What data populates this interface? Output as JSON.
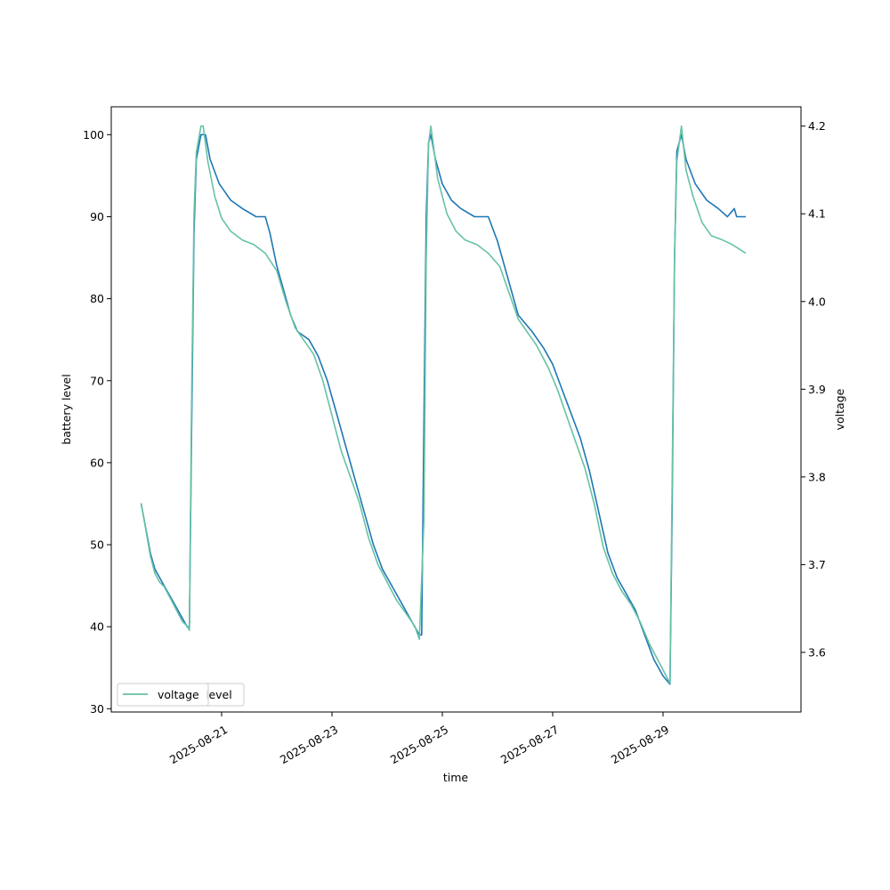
{
  "chart_data": {
    "type": "line",
    "xlabel": "time",
    "x_ticks": [
      "2025-08-21",
      "2025-08-23",
      "2025-08-25",
      "2025-08-27",
      "2025-08-29"
    ],
    "xlim": [
      "2025-08-19 00:00",
      "2025-08-31 12:00"
    ],
    "left_axis": {
      "label": "battery level",
      "lim": [
        29.6,
        103.4
      ],
      "ticks": [
        "30",
        "40",
        "50",
        "60",
        "70",
        "80",
        "90",
        "100"
      ]
    },
    "right_axis": {
      "label": "voltage",
      "lim": [
        3.532,
        4.222
      ],
      "ticks": [
        "3.6",
        "3.7",
        "3.8",
        "3.9",
        "4.0",
        "4.1",
        "4.2"
      ]
    },
    "legend": {
      "location": "lower-left",
      "entries": [
        "level",
        "voltage"
      ]
    },
    "grid": false,
    "series": [
      {
        "name": "level",
        "axis": "left",
        "color": "#1f77b4",
        "points": [
          [
            "2025-08-19 13:00",
            55
          ],
          [
            "2025-08-19 15:00",
            52
          ],
          [
            "2025-08-19 17:00",
            49
          ],
          [
            "2025-08-19 19:00",
            47
          ],
          [
            "2025-08-19 21:00",
            46
          ],
          [
            "2025-08-19 23:00",
            45
          ],
          [
            "2025-08-20 01:00",
            44
          ],
          [
            "2025-08-20 03:00",
            43
          ],
          [
            "2025-08-20 05:00",
            42
          ],
          [
            "2025-08-20 07:00",
            41
          ],
          [
            "2025-08-20 09:00",
            40
          ],
          [
            "2025-08-20 10:00",
            40
          ],
          [
            "2025-08-20 11:00",
            65
          ],
          [
            "2025-08-20 12:00",
            88
          ],
          [
            "2025-08-20 13:00",
            97
          ],
          [
            "2025-08-20 15:00",
            100
          ],
          [
            "2025-08-20 17:00",
            100
          ],
          [
            "2025-08-20 19:00",
            97
          ],
          [
            "2025-08-20 23:00",
            94
          ],
          [
            "2025-08-21 04:00",
            92
          ],
          [
            "2025-08-21 09:00",
            91
          ],
          [
            "2025-08-21 15:00",
            90
          ],
          [
            "2025-08-21 19:00",
            90
          ],
          [
            "2025-08-21 21:00",
            88
          ],
          [
            "2025-08-22 00:00",
            84
          ],
          [
            "2025-08-22 03:00",
            81
          ],
          [
            "2025-08-22 06:00",
            78
          ],
          [
            "2025-08-22 09:00",
            76
          ],
          [
            "2025-08-22 14:00",
            75
          ],
          [
            "2025-08-22 18:00",
            73
          ],
          [
            "2025-08-22 22:00",
            70
          ],
          [
            "2025-08-23 02:00",
            66
          ],
          [
            "2025-08-23 06:00",
            62
          ],
          [
            "2025-08-23 10:00",
            58
          ],
          [
            "2025-08-23 14:00",
            54
          ],
          [
            "2025-08-23 18:00",
            50
          ],
          [
            "2025-08-23 22:00",
            47
          ],
          [
            "2025-08-24 02:00",
            45
          ],
          [
            "2025-08-24 06:00",
            43
          ],
          [
            "2025-08-24 10:00",
            41
          ],
          [
            "2025-08-24 14:00",
            39
          ],
          [
            "2025-08-24 15:00",
            39
          ],
          [
            "2025-08-24 16:00",
            65
          ],
          [
            "2025-08-24 17:00",
            90
          ],
          [
            "2025-08-24 18:00",
            99
          ],
          [
            "2025-08-24 19:00",
            100
          ],
          [
            "2025-08-24 21:00",
            97
          ],
          [
            "2025-08-25 00:00",
            94
          ],
          [
            "2025-08-25 04:00",
            92
          ],
          [
            "2025-08-25 08:00",
            91
          ],
          [
            "2025-08-25 14:00",
            90
          ],
          [
            "2025-08-25 20:00",
            90
          ],
          [
            "2025-08-26 00:00",
            87
          ],
          [
            "2025-08-26 03:00",
            84
          ],
          [
            "2025-08-26 06:00",
            81
          ],
          [
            "2025-08-26 09:00",
            78
          ],
          [
            "2025-08-26 12:00",
            77
          ],
          [
            "2025-08-26 15:00",
            76
          ],
          [
            "2025-08-26 20:00",
            74
          ],
          [
            "2025-08-27 00:00",
            72
          ],
          [
            "2025-08-27 04:00",
            69
          ],
          [
            "2025-08-27 08:00",
            66
          ],
          [
            "2025-08-27 12:00",
            63
          ],
          [
            "2025-08-27 16:00",
            59
          ],
          [
            "2025-08-27 20:00",
            54
          ],
          [
            "2025-08-28 00:00",
            49
          ],
          [
            "2025-08-28 04:00",
            46
          ],
          [
            "2025-08-28 08:00",
            44
          ],
          [
            "2025-08-28 12:00",
            42
          ],
          [
            "2025-08-28 16:00",
            39
          ],
          [
            "2025-08-28 20:00",
            36
          ],
          [
            "2025-08-29 00:00",
            34
          ],
          [
            "2025-08-29 03:00",
            33
          ],
          [
            "2025-08-29 04:00",
            55
          ],
          [
            "2025-08-29 05:00",
            85
          ],
          [
            "2025-08-29 06:00",
            98
          ],
          [
            "2025-08-29 08:00",
            100
          ],
          [
            "2025-08-29 10:00",
            97
          ],
          [
            "2025-08-29 14:00",
            94
          ],
          [
            "2025-08-29 19:00",
            92
          ],
          [
            "2025-08-30 00:00",
            91
          ],
          [
            "2025-08-30 04:00",
            90
          ],
          [
            "2025-08-30 07:00",
            91
          ],
          [
            "2025-08-30 08:00",
            90
          ],
          [
            "2025-08-30 12:00",
            90
          ]
        ]
      },
      {
        "name": "voltage",
        "axis": "right",
        "color": "#66c2a5",
        "points": [
          [
            "2025-08-19 13:00",
            3.77
          ],
          [
            "2025-08-19 15:00",
            3.74
          ],
          [
            "2025-08-19 17:00",
            3.71
          ],
          [
            "2025-08-19 19:00",
            3.69
          ],
          [
            "2025-08-19 21:00",
            3.68
          ],
          [
            "2025-08-19 23:00",
            3.675
          ],
          [
            "2025-08-20 01:00",
            3.665
          ],
          [
            "2025-08-20 03:00",
            3.655
          ],
          [
            "2025-08-20 05:00",
            3.645
          ],
          [
            "2025-08-20 07:00",
            3.635
          ],
          [
            "2025-08-20 09:00",
            3.63
          ],
          [
            "2025-08-20 10:00",
            3.625
          ],
          [
            "2025-08-20 11:00",
            3.9
          ],
          [
            "2025-08-20 12:00",
            4.1
          ],
          [
            "2025-08-20 13:00",
            4.17
          ],
          [
            "2025-08-20 15:00",
            4.2
          ],
          [
            "2025-08-20 16:00",
            4.2
          ],
          [
            "2025-08-20 18:00",
            4.16
          ],
          [
            "2025-08-20 21:00",
            4.12
          ],
          [
            "2025-08-21 00:00",
            4.095
          ],
          [
            "2025-08-21 04:00",
            4.08
          ],
          [
            "2025-08-21 09:00",
            4.07
          ],
          [
            "2025-08-21 14:00",
            4.065
          ],
          [
            "2025-08-21 19:00",
            4.055
          ],
          [
            "2025-08-22 00:00",
            4.035
          ],
          [
            "2025-08-22 04:00",
            4.0
          ],
          [
            "2025-08-22 08:00",
            3.97
          ],
          [
            "2025-08-22 12:00",
            3.955
          ],
          [
            "2025-08-22 16:00",
            3.94
          ],
          [
            "2025-08-22 20:00",
            3.91
          ],
          [
            "2025-08-23 00:00",
            3.87
          ],
          [
            "2025-08-23 04:00",
            3.83
          ],
          [
            "2025-08-23 08:00",
            3.8
          ],
          [
            "2025-08-23 12:00",
            3.77
          ],
          [
            "2025-08-23 16:00",
            3.73
          ],
          [
            "2025-08-23 20:00",
            3.7
          ],
          [
            "2025-08-24 00:00",
            3.68
          ],
          [
            "2025-08-24 04:00",
            3.66
          ],
          [
            "2025-08-24 08:00",
            3.645
          ],
          [
            "2025-08-24 12:00",
            3.63
          ],
          [
            "2025-08-24 14:00",
            3.615
          ],
          [
            "2025-08-24 16:00",
            3.75
          ],
          [
            "2025-08-24 17:00",
            4.05
          ],
          [
            "2025-08-24 18:00",
            4.18
          ],
          [
            "2025-08-24 19:00",
            4.2
          ],
          [
            "2025-08-24 22:00",
            4.14
          ],
          [
            "2025-08-25 02:00",
            4.1
          ],
          [
            "2025-08-25 06:00",
            4.08
          ],
          [
            "2025-08-25 10:00",
            4.07
          ],
          [
            "2025-08-25 15:00",
            4.065
          ],
          [
            "2025-08-25 20:00",
            4.055
          ],
          [
            "2025-08-26 01:00",
            4.04
          ],
          [
            "2025-08-26 05:00",
            4.01
          ],
          [
            "2025-08-26 09:00",
            3.98
          ],
          [
            "2025-08-26 13:00",
            3.965
          ],
          [
            "2025-08-26 17:00",
            3.95
          ],
          [
            "2025-08-26 22:00",
            3.925
          ],
          [
            "2025-08-27 02:00",
            3.9
          ],
          [
            "2025-08-27 06:00",
            3.87
          ],
          [
            "2025-08-27 10:00",
            3.84
          ],
          [
            "2025-08-27 14:00",
            3.81
          ],
          [
            "2025-08-27 18:00",
            3.77
          ],
          [
            "2025-08-27 22:00",
            3.72
          ],
          [
            "2025-08-28 02:00",
            3.69
          ],
          [
            "2025-08-28 06:00",
            3.67
          ],
          [
            "2025-08-28 10:00",
            3.655
          ],
          [
            "2025-08-28 14:00",
            3.635
          ],
          [
            "2025-08-28 18:00",
            3.61
          ],
          [
            "2025-08-28 22:00",
            3.59
          ],
          [
            "2025-08-29 02:00",
            3.57
          ],
          [
            "2025-08-29 03:00",
            3.565
          ],
          [
            "2025-08-29 04:00",
            3.8
          ],
          [
            "2025-08-29 05:00",
            4.05
          ],
          [
            "2025-08-29 06:00",
            4.16
          ],
          [
            "2025-08-29 08:00",
            4.2
          ],
          [
            "2025-08-29 10:00",
            4.15
          ],
          [
            "2025-08-29 13:00",
            4.12
          ],
          [
            "2025-08-29 17:00",
            4.09
          ],
          [
            "2025-08-29 21:00",
            4.075
          ],
          [
            "2025-08-30 02:00",
            4.07
          ],
          [
            "2025-08-30 06:00",
            4.065
          ],
          [
            "2025-08-30 12:00",
            4.055
          ]
        ]
      }
    ]
  }
}
